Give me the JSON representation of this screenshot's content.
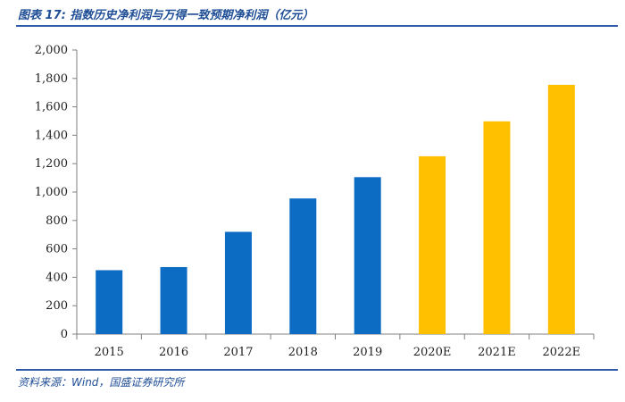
{
  "header": {
    "title": "图表 17:  指数历史净利润与万得一致预期净利润（亿元）"
  },
  "footer": {
    "source": "资料来源：Wind，国盛证券研究所"
  },
  "colors": {
    "actual": "#0c6cc4",
    "forecast": "#ffc000",
    "rule": "#2e5aa8",
    "text": "#1f4e96"
  },
  "chart_data": {
    "type": "bar",
    "title": "",
    "xlabel": "",
    "ylabel": "",
    "categories": [
      "2015",
      "2016",
      "2017",
      "2018",
      "2019",
      "2020E",
      "2021E",
      "2022E"
    ],
    "values": [
      450,
      472,
      720,
      955,
      1105,
      1252,
      1498,
      1755
    ],
    "ylim": [
      0,
      2000
    ],
    "yticks": [
      "0",
      "200",
      "400",
      "600",
      "800",
      "1,000",
      "1,200",
      "1,400",
      "1,600",
      "1,800",
      "2,000"
    ],
    "bar_colors": [
      "#0c6cc4",
      "#0c6cc4",
      "#0c6cc4",
      "#0c6cc4",
      "#0c6cc4",
      "#ffc000",
      "#ffc000",
      "#ffc000"
    ],
    "grid": false,
    "legend": "none"
  }
}
